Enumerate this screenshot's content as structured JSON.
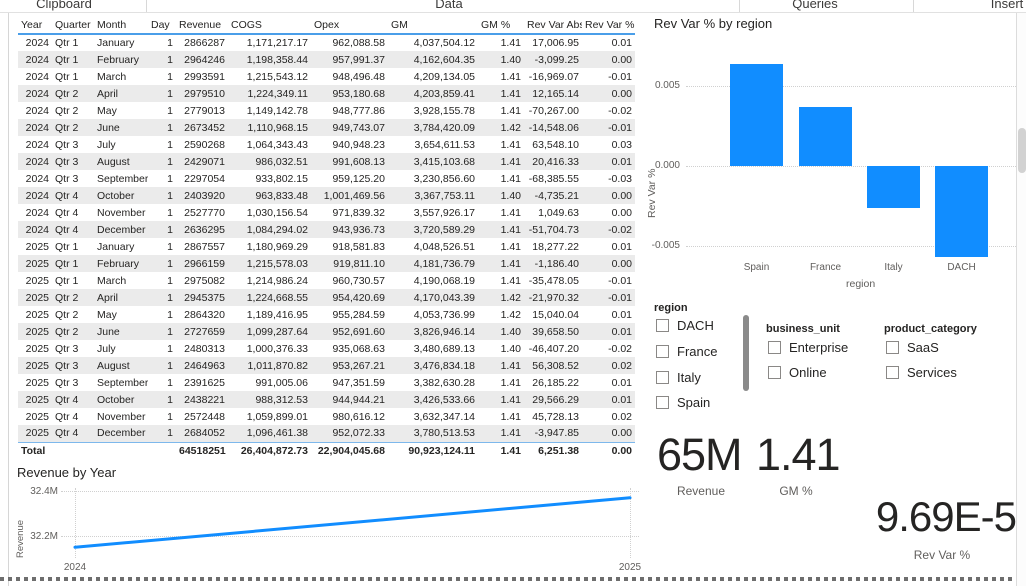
{
  "ribbon": {
    "groups": [
      {
        "label": "Clipboard"
      },
      {
        "label": "Data"
      },
      {
        "label": "Queries"
      },
      {
        "label": "Insert"
      }
    ]
  },
  "table": {
    "columns": [
      "Year",
      "Quarter",
      "Month",
      "Day",
      "Revenue",
      "COGS",
      "Opex",
      "GM",
      "GM %",
      "Rev Var Abs",
      "Rev Var %"
    ],
    "rows": [
      [
        "2024",
        "Qtr 1",
        "January",
        "1",
        "2866287",
        "1,171,217.17",
        "962,088.58",
        "4,037,504.12",
        "1.41",
        "17,006.95",
        "0.01"
      ],
      [
        "2024",
        "Qtr 1",
        "February",
        "1",
        "2964246",
        "1,198,358.44",
        "957,991.37",
        "4,162,604.35",
        "1.40",
        "-3,099.25",
        "0.00"
      ],
      [
        "2024",
        "Qtr 1",
        "March",
        "1",
        "2993591",
        "1,215,543.12",
        "948,496.48",
        "4,209,134.05",
        "1.41",
        "-16,969.07",
        "-0.01"
      ],
      [
        "2024",
        "Qtr 2",
        "April",
        "1",
        "2979510",
        "1,224,349.11",
        "953,180.68",
        "4,203,859.41",
        "1.41",
        "12,165.14",
        "0.00"
      ],
      [
        "2024",
        "Qtr 2",
        "May",
        "1",
        "2779013",
        "1,149,142.78",
        "948,777.86",
        "3,928,155.78",
        "1.41",
        "-70,267.00",
        "-0.02"
      ],
      [
        "2024",
        "Qtr 2",
        "June",
        "1",
        "2673452",
        "1,110,968.15",
        "949,743.07",
        "3,784,420.09",
        "1.42",
        "-14,548.06",
        "-0.01"
      ],
      [
        "2024",
        "Qtr 3",
        "July",
        "1",
        "2590268",
        "1,064,343.43",
        "940,948.23",
        "3,654,611.53",
        "1.41",
        "63,548.10",
        "0.03"
      ],
      [
        "2024",
        "Qtr 3",
        "August",
        "1",
        "2429071",
        "986,032.51",
        "991,608.13",
        "3,415,103.68",
        "1.41",
        "20,416.33",
        "0.01"
      ],
      [
        "2024",
        "Qtr 3",
        "September",
        "1",
        "2297054",
        "933,802.15",
        "959,125.20",
        "3,230,856.60",
        "1.41",
        "-68,385.55",
        "-0.03"
      ],
      [
        "2024",
        "Qtr 4",
        "October",
        "1",
        "2403920",
        "963,833.48",
        "1,001,469.56",
        "3,367,753.11",
        "1.40",
        "-4,735.21",
        "0.00"
      ],
      [
        "2024",
        "Qtr 4",
        "November",
        "1",
        "2527770",
        "1,030,156.54",
        "971,839.32",
        "3,557,926.17",
        "1.41",
        "1,049.63",
        "0.00"
      ],
      [
        "2024",
        "Qtr 4",
        "December",
        "1",
        "2636295",
        "1,084,294.02",
        "943,936.73",
        "3,720,589.29",
        "1.41",
        "-51,704.73",
        "-0.02"
      ],
      [
        "2025",
        "Qtr 1",
        "January",
        "1",
        "2867557",
        "1,180,969.29",
        "918,581.83",
        "4,048,526.51",
        "1.41",
        "18,277.22",
        "0.01"
      ],
      [
        "2025",
        "Qtr 1",
        "February",
        "1",
        "2966159",
        "1,215,578.03",
        "919,811.10",
        "4,181,736.79",
        "1.41",
        "-1,186.40",
        "0.00"
      ],
      [
        "2025",
        "Qtr 1",
        "March",
        "1",
        "2975082",
        "1,214,986.24",
        "960,730.57",
        "4,190,068.19",
        "1.41",
        "-35,478.05",
        "-0.01"
      ],
      [
        "2025",
        "Qtr 2",
        "April",
        "1",
        "2945375",
        "1,224,668.55",
        "954,420.69",
        "4,170,043.39",
        "1.42",
        "-21,970.32",
        "-0.01"
      ],
      [
        "2025",
        "Qtr 2",
        "May",
        "1",
        "2864320",
        "1,189,416.95",
        "955,284.59",
        "4,053,736.99",
        "1.42",
        "15,040.04",
        "0.01"
      ],
      [
        "2025",
        "Qtr 2",
        "June",
        "1",
        "2727659",
        "1,099,287.64",
        "952,691.60",
        "3,826,946.14",
        "1.40",
        "39,658.50",
        "0.01"
      ],
      [
        "2025",
        "Qtr 3",
        "July",
        "1",
        "2480313",
        "1,000,376.33",
        "935,068.63",
        "3,480,689.13",
        "1.40",
        "-46,407.20",
        "-0.02"
      ],
      [
        "2025",
        "Qtr 3",
        "August",
        "1",
        "2464963",
        "1,011,870.82",
        "953,267.21",
        "3,476,834.18",
        "1.41",
        "56,308.52",
        "0.02"
      ],
      [
        "2025",
        "Qtr 3",
        "September",
        "1",
        "2391625",
        "991,005.06",
        "947,351.59",
        "3,382,630.28",
        "1.41",
        "26,185.22",
        "0.01"
      ],
      [
        "2025",
        "Qtr 4",
        "October",
        "1",
        "2438221",
        "988,312.53",
        "944,944.21",
        "3,426,533.66",
        "1.41",
        "29,566.29",
        "0.01"
      ],
      [
        "2025",
        "Qtr 4",
        "November",
        "1",
        "2572448",
        "1,059,899.01",
        "980,616.12",
        "3,632,347.14",
        "1.41",
        "45,728.13",
        "0.02"
      ],
      [
        "2025",
        "Qtr 4",
        "December",
        "1",
        "2684052",
        "1,096,461.38",
        "952,072.33",
        "3,780,513.53",
        "1.41",
        "-3,947.85",
        "0.00"
      ]
    ],
    "total_row": [
      "Total",
      "",
      "",
      "",
      "64518251",
      "26,404,872.73",
      "22,904,045.68",
      "90,923,124.11",
      "1.41",
      "6,251.38",
      "0.00"
    ]
  },
  "chart_data": [
    {
      "type": "bar",
      "title": "Rev Var % by region",
      "categories": [
        "Spain",
        "France",
        "Italy",
        "DACH"
      ],
      "values": [
        0.0064,
        0.0037,
        -0.0026,
        -0.0057
      ],
      "xlabel": "region",
      "ylabel": "Rev Var %",
      "ylim": [
        -0.0075,
        0.0095
      ],
      "yticks": [
        0.005,
        0,
        -0.005
      ],
      "ytick_labels": [
        "0.005",
        "0.000",
        "-0.005"
      ],
      "grid": "dotted",
      "bar_color": "#118DFF"
    },
    {
      "type": "line",
      "title": "Revenue by Year",
      "x": [
        2024,
        2025
      ],
      "xtick_labels": [
        "2024",
        "2025"
      ],
      "values": [
        32150000,
        32370000
      ],
      "xlabel": "",
      "ylabel": "Revenue",
      "yticks": [
        32400000,
        32200000
      ],
      "ytick_labels": [
        "32.4M",
        "32.2M"
      ],
      "grid": "dotted",
      "line_color": "#118DFF"
    }
  ],
  "slicers": [
    {
      "title": "region",
      "items": [
        "DACH",
        "France",
        "Italy",
        "Spain"
      ],
      "checked": [
        false,
        false,
        false,
        false
      ]
    },
    {
      "title": "business_unit",
      "items": [
        "Enterprise",
        "Online"
      ],
      "checked": [
        false,
        false
      ]
    },
    {
      "title": "product_category",
      "items": [
        "SaaS",
        "Services"
      ],
      "checked": [
        false,
        false
      ]
    }
  ],
  "cards": [
    {
      "value": "65M",
      "label": "Revenue"
    },
    {
      "value": "1.41",
      "label": "GM %"
    },
    {
      "value": "9.69E-5",
      "label": "Rev Var %"
    }
  ],
  "colors": {
    "accent": "#118DFF",
    "header_rule": "#4A9EE9",
    "alt_row": "#EBEBEB",
    "axis_text": "#605E5C"
  }
}
